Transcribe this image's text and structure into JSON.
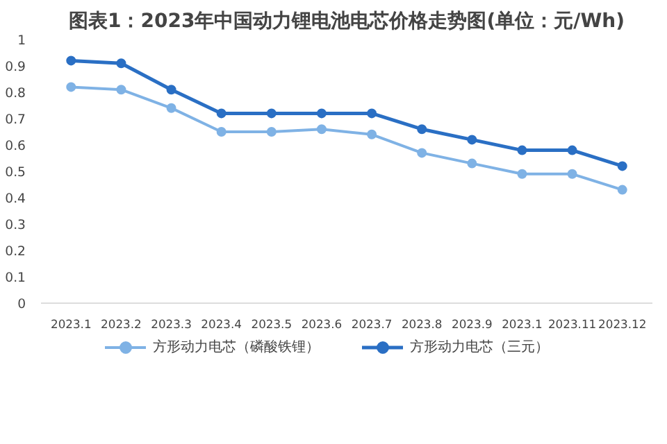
{
  "chart_data": {
    "type": "line",
    "title": "图表1：2023年中国动力锂电池电芯价格走势图(单位：元/Wh)",
    "categories": [
      "2023.1",
      "2023.2",
      "2023.3",
      "2023.4",
      "2023.5",
      "2023.6",
      "2023.7",
      "2023.8",
      "2023.9",
      "2023.1",
      "2023.11",
      "2023.12"
    ],
    "series": [
      {
        "name": "方形动力电芯（磷酸铁锂）",
        "color": "#7fb2e5",
        "values": [
          0.82,
          0.81,
          0.74,
          0.65,
          0.65,
          0.66,
          0.64,
          0.57,
          0.53,
          0.49,
          0.49,
          0.43
        ]
      },
      {
        "name": "方形动力电芯（三元）",
        "color": "#2a6fc4",
        "values": [
          0.92,
          0.91,
          0.81,
          0.72,
          0.72,
          0.72,
          0.72,
          0.66,
          0.62,
          0.58,
          0.58,
          0.52
        ]
      }
    ],
    "ylim": [
      0,
      1
    ],
    "yticks": [
      0,
      0.1,
      0.2,
      0.3,
      0.4,
      0.5,
      0.6,
      0.7,
      0.8,
      0.9,
      1
    ],
    "grid": false,
    "legend": "bottom",
    "marker": "circle",
    "line_style": "solid"
  }
}
